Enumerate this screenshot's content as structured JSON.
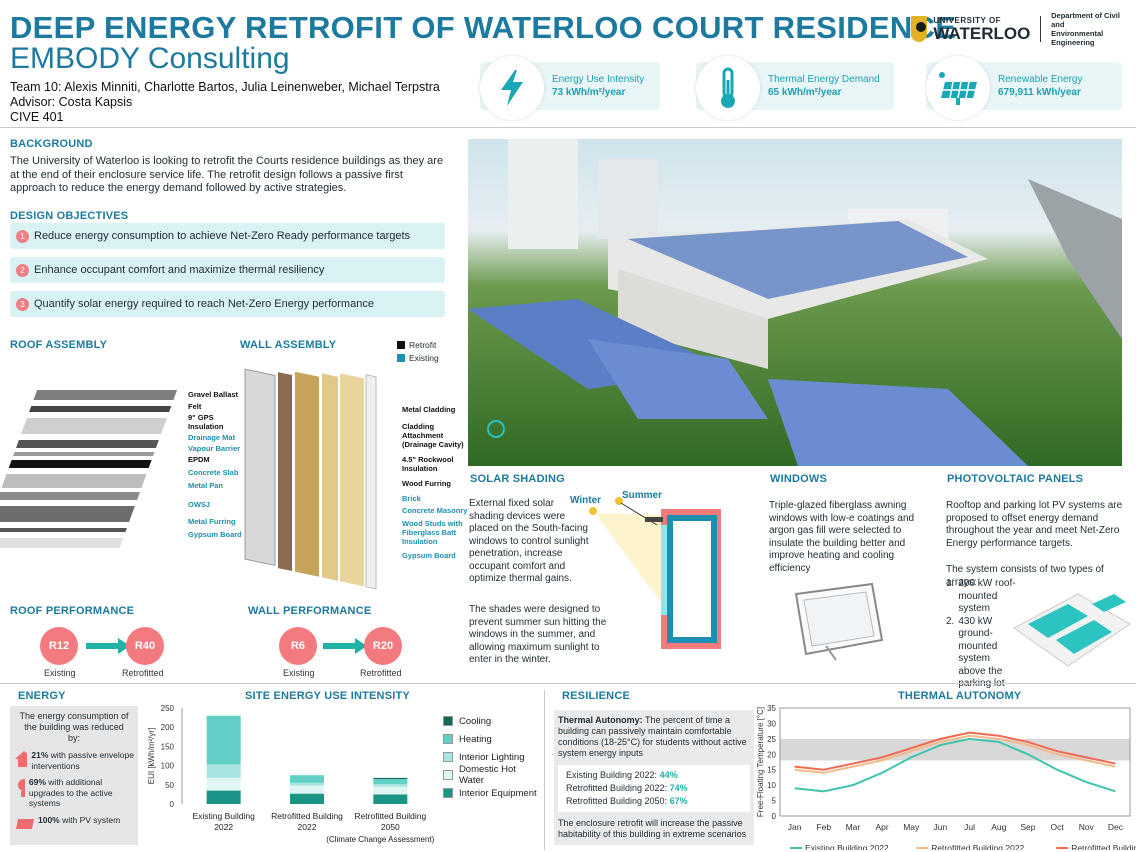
{
  "header": {
    "title": "DEEP ENERGY RETROFIT OF WATERLOO COURT RESIDENCE",
    "subtitle": "EMBODY Consulting",
    "team": "Team 10: Alexis Minniti, Charlotte Bartos, Julia Leinenweber, Michael Terpstra",
    "advisor": "Advisor: Costa Kapsis",
    "course": "CIVE 401"
  },
  "logo": {
    "line1": "UNIVERSITY OF",
    "line2": "WATERLOO",
    "dept1": "Department of Civil and",
    "dept2": "Environmental Engineering"
  },
  "metrics": [
    {
      "label": "Energy Use Intensity",
      "value": "73 kWh/m²/year",
      "icon": "lightning-icon"
    },
    {
      "label": "Thermal Energy Demand",
      "value": "65 kWh/m²/year",
      "icon": "thermometer-icon"
    },
    {
      "label": "Renewable Energy",
      "value": "679,911 kWh/year",
      "icon": "solar-panel-icon"
    }
  ],
  "background": {
    "heading": "BACKGROUND",
    "text": "The University of Waterloo is looking to retrofit the Courts residence buildings as they are at the end of their enclosure service life. The retrofit design follows a passive first approach to reduce the energy demand followed by active strategies."
  },
  "objectives": {
    "heading": "DESIGN OBJECTIVES",
    "items": [
      {
        "n": "1",
        "text": "Reduce energy consumption to achieve Net-Zero Ready performance targets"
      },
      {
        "n": "2",
        "text": "Enhance occupant comfort and maximize thermal resiliency"
      },
      {
        "n": "3",
        "text": "Quantify solar energy required to reach Net-Zero Energy performance"
      }
    ]
  },
  "roof": {
    "heading": "ROOF ASSEMBLY",
    "labels": [
      {
        "t": "Gravel Ballast",
        "existing": false
      },
      {
        "t": "Felt",
        "existing": false
      },
      {
        "t": "9\" GPS Insulation",
        "existing": false
      },
      {
        "t": "Drainage Mat",
        "existing": true
      },
      {
        "t": "Vapour Barrier",
        "existing": true
      },
      {
        "t": "EPDM",
        "existing": false
      },
      {
        "t": "Concrete Slab",
        "existing": true
      },
      {
        "t": "Metal Pan",
        "existing": true
      },
      {
        "t": "OWSJ",
        "existing": true
      },
      {
        "t": "Metal Furring",
        "existing": true
      },
      {
        "t": "Gypsum Board",
        "existing": true
      }
    ]
  },
  "wall": {
    "heading": "WALL ASSEMBLY",
    "legend_retrofit": "Retrofit",
    "legend_existing": "Existing",
    "labels": [
      {
        "t": "Metal Cladding",
        "existing": false
      },
      {
        "t": "Cladding Attachment (Drainage Cavity)",
        "existing": false
      },
      {
        "t": "4.5\" Rockwool Insulation",
        "existing": false
      },
      {
        "t": "Wood Furring",
        "existing": false
      },
      {
        "t": "Brick",
        "existing": true
      },
      {
        "t": "Concrete Masonry",
        "existing": true
      },
      {
        "t": "Wood Studs with Fiberglass Batt Insulation",
        "existing": true
      },
      {
        "t": "Gypsum Board",
        "existing": true
      }
    ]
  },
  "roof_perf": {
    "heading": "ROOF PERFORMANCE",
    "existing": "R12",
    "retrofitted": "R40",
    "existing_label": "Existing",
    "retrofitted_label": "Retrofitted"
  },
  "wall_perf": {
    "heading": "WALL PERFORMANCE",
    "existing": "R6",
    "retrofitted": "R20",
    "existing_label": "Existing",
    "retrofitted_label": "Retrofitted"
  },
  "solar_shading": {
    "heading": "SOLAR SHADING",
    "text1": "External fixed solar shading devices were placed on the South-facing windows to control sunlight penetration, increase occupant comfort and optimize thermal gains.",
    "text2": "The shades were designed to prevent summer sun hitting the windows in the summer, and allowing maximum sunlight to enter in the winter.",
    "winter": "Winter",
    "summer": "Summer"
  },
  "windows": {
    "heading": "WINDOWS",
    "text": "Triple-glazed fiberglass awning windows with low-e coatings and argon gas fill were selected to insulate the building better and improve heating and cooling efficiency"
  },
  "pv": {
    "heading": "PHOTOVOLTAIC PANELS",
    "text": "Rooftop and parking lot PV systems are proposed to offset energy demand throughout the year and meet Net-Zero Energy performance targets.",
    "text2": "The system consists of two types of arrays:",
    "arrays": [
      "200 kW roof-mounted system",
      "430 kW ground-mounted system above the parking lot"
    ]
  },
  "energy": {
    "heading": "ENERGY",
    "intro": "The energy consumption of the building was reduced by:",
    "items": [
      {
        "pct": "21%",
        "text": "with passive envelope interventions",
        "icon": "house-icon"
      },
      {
        "pct": "69%",
        "text": "with additional upgrades to the active systems",
        "icon": "lightbulb-icon"
      },
      {
        "pct": "100%",
        "text": "with PV system",
        "icon": "solar-panel-icon"
      }
    ]
  },
  "eui_chart": {
    "heading": "SITE ENERGY USE INTENSITY",
    "note": "(Climate Change Assessment)"
  },
  "resilience": {
    "heading": "RESILIENCE",
    "bold": "Thermal Autonomy:",
    "text": " The percent of time a building can passively maintain comfortable conditions (18-25°C) for students without active system energy inputs",
    "rows": [
      {
        "label": "Existing Building 2022:",
        "value": "44%"
      },
      {
        "label": "Retrofitted Building 2022:",
        "value": "74%"
      },
      {
        "label": "Retrofitted Building 2050:",
        "value": "67%"
      }
    ],
    "footer": "The enclosure retrofit will increase the passive habitability of this building in extreme scenarios"
  },
  "autonomy_chart": {
    "heading": "THERMAL AUTONOMY"
  },
  "chart_data": [
    {
      "type": "bar",
      "stacked": true,
      "title": "SITE ENERGY USE INTENSITY",
      "ylabel": "EUI [kWh/m²/yr]",
      "ylim": [
        0,
        250
      ],
      "yticks": [
        0,
        50,
        100,
        150,
        200,
        250
      ],
      "categories": [
        "Existing Building 2022",
        "Retrofitted Building 2022",
        "Retrofitted Building 2050"
      ],
      "note": "(Climate Change Assessment)",
      "series": [
        {
          "name": "Interior Equipment",
          "color": "#1a9484",
          "values": [
            35,
            27,
            25
          ]
        },
        {
          "name": "Domestic Hot Water",
          "color": "#dff6f4",
          "values": [
            33,
            21,
            20
          ]
        },
        {
          "name": "Interior Lighting",
          "color": "#a8e5e0",
          "values": [
            35,
            7,
            7
          ]
        },
        {
          "name": "Heating",
          "color": "#63d0c6",
          "values": [
            127,
            20,
            13
          ]
        },
        {
          "name": "Cooling",
          "color": "#0f6a5c",
          "values": [
            0,
            0,
            3
          ]
        }
      ],
      "legend_order": [
        "Cooling",
        "Heating",
        "Interior Lighting",
        "Domestic Hot Water",
        "Interior Equipment"
      ]
    },
    {
      "type": "line",
      "title": "THERMAL AUTONOMY",
      "ylabel": "Free-Floating Temperature [°C]",
      "ylim": [
        0,
        35
      ],
      "yticks": [
        0,
        5,
        10,
        15,
        20,
        25,
        30,
        35
      ],
      "comfort_band": [
        18,
        25
      ],
      "categories": [
        "Jan",
        "Feb",
        "Mar",
        "Apr",
        "May",
        "Jun",
        "Jul",
        "Aug",
        "Sep",
        "Oct",
        "Nov",
        "Dec"
      ],
      "series": [
        {
          "name": "Existing Building 2022",
          "color": "#3fc4ae",
          "values": [
            9,
            8,
            10,
            14,
            19,
            23,
            25,
            24,
            20,
            15,
            11,
            8
          ]
        },
        {
          "name": "Retrofitted Building 2022",
          "color": "#f5b98a",
          "values": [
            15,
            14,
            16,
            18,
            21,
            24,
            26,
            25,
            23,
            20,
            18,
            16
          ]
        },
        {
          "name": "Retrofitted Building 2050",
          "color": "#f26a4f",
          "values": [
            16,
            15,
            17,
            19,
            22,
            25,
            27,
            26,
            24,
            21,
            19,
            17
          ]
        }
      ]
    }
  ]
}
